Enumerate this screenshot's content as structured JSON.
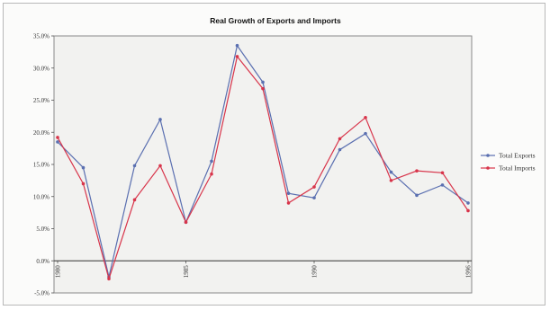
{
  "chart_data": {
    "type": "line",
    "title": "Real Growth of Exports and Imports",
    "xlabel": "",
    "ylabel": "",
    "x": [
      1980,
      1981,
      1982,
      1983,
      1984,
      1985,
      1986,
      1987,
      1988,
      1989,
      1990,
      1991,
      1992,
      1993,
      1994,
      1995,
      1996
    ],
    "x_tick_labels": [
      "1980",
      "1985",
      "1990",
      "1996"
    ],
    "x_tick_values": [
      1980,
      1985,
      1990,
      1996
    ],
    "y_tick_labels": [
      "-5.0%",
      "0.0%",
      "5.0%",
      "10.0%",
      "15.0%",
      "20.0%",
      "25.0%",
      "30.0%",
      "35.0%"
    ],
    "y_tick_values": [
      -5,
      0,
      5,
      10,
      15,
      20,
      25,
      30,
      35
    ],
    "ylim": [
      -5,
      35
    ],
    "xlim": [
      1980,
      1996
    ],
    "legend_position": "right",
    "grid": false,
    "series": [
      {
        "name": "Total Exports",
        "color": "#5a6fb0",
        "values": [
          18.5,
          14.5,
          -2.5,
          14.8,
          22.0,
          6.0,
          15.5,
          33.5,
          27.8,
          10.5,
          9.8,
          17.3,
          19.8,
          13.8,
          10.2,
          11.8,
          9.0
        ]
      },
      {
        "name": "Total Imports",
        "color": "#d8344a",
        "values": [
          19.2,
          12.0,
          -2.8,
          9.5,
          14.8,
          6.0,
          13.5,
          31.8,
          26.8,
          9.0,
          11.5,
          19.0,
          22.3,
          12.5,
          14.0,
          13.7,
          7.8
        ]
      }
    ]
  }
}
